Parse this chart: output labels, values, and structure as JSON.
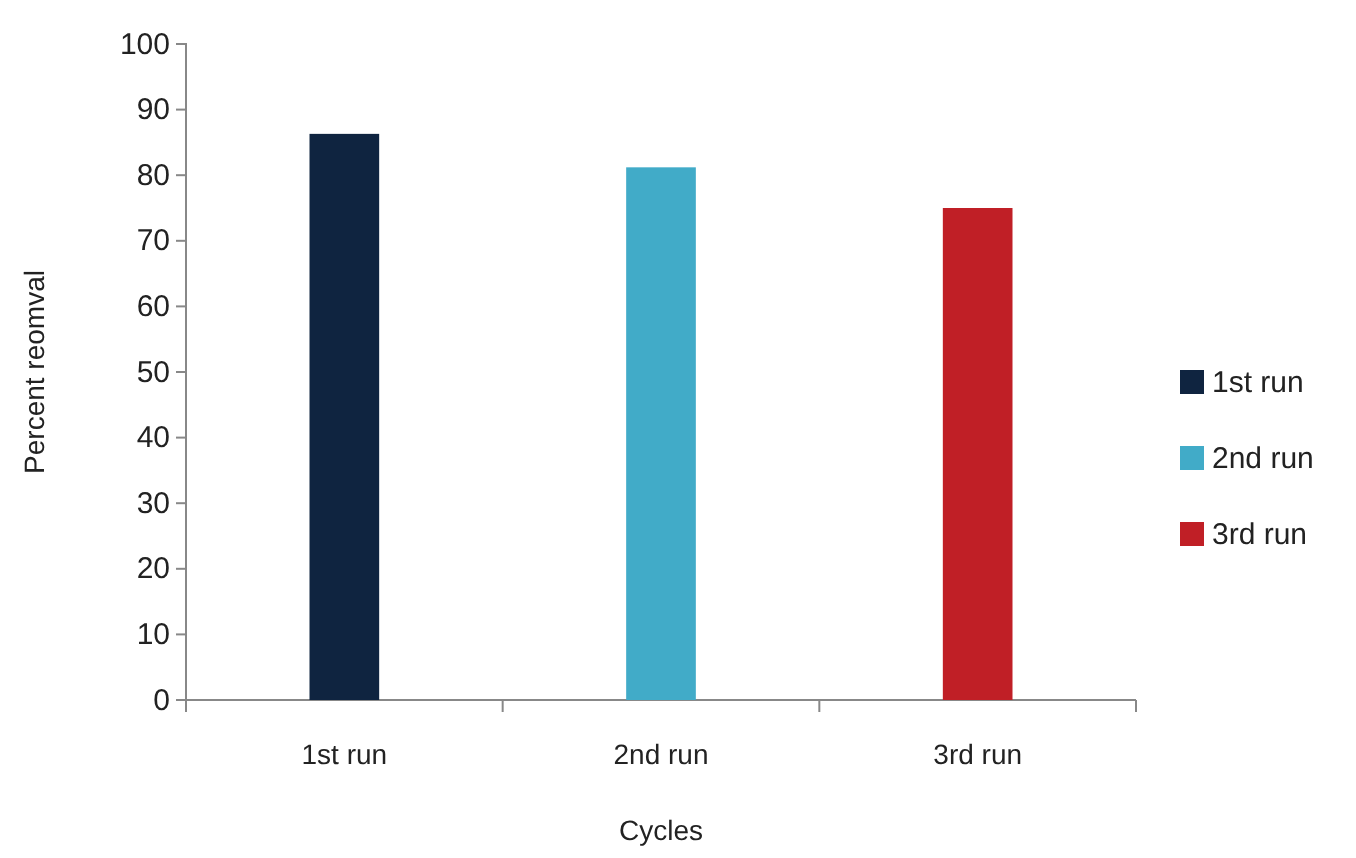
{
  "chart_data": {
    "type": "bar",
    "xlabel": "Cycles",
    "ylabel": "Percent reomval",
    "categories": [
      "1st run",
      "2nd run",
      "3rd run"
    ],
    "series": [
      {
        "name": "1st run",
        "color": "#0f2440",
        "values": [
          86.3,
          null,
          null
        ]
      },
      {
        "name": "2nd run",
        "color": "#41abc8",
        "values": [
          null,
          81.2,
          null
        ]
      },
      {
        "name": "3rd run",
        "color": "#c01f26",
        "values": [
          null,
          null,
          75
        ]
      }
    ],
    "ylim": [
      0,
      100
    ],
    "yticks": [
      0,
      10,
      20,
      30,
      40,
      50,
      60,
      70,
      80,
      90,
      100
    ],
    "grid": false,
    "legend": "right"
  }
}
